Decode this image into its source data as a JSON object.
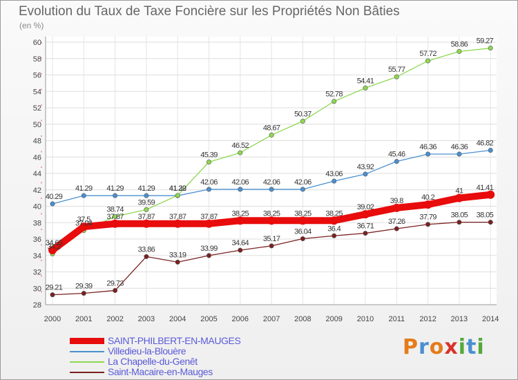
{
  "header": {
    "title": "Evolution du Taux de Taxe Foncière sur les Propriétés Non Bâties",
    "unit": "(en %)"
  },
  "brand": {
    "letters": [
      "P",
      "r",
      "o",
      "x",
      "i",
      "t",
      "i"
    ],
    "colors": [
      "#e57c1c",
      "#4a8fd0",
      "#e57c1c",
      "#d8332a",
      "#55a83a",
      "#4a8fd0",
      "#55a83a"
    ]
  },
  "chart_data": {
    "type": "line",
    "title": "Evolution du Taux de Taxe Foncière sur les Propriétés Non Bâties",
    "ylabel": "(en %)",
    "xlabel": "",
    "x": [
      "2000",
      "2001",
      "2002",
      "2003",
      "2004",
      "2005",
      "2006",
      "2007",
      "2008",
      "2009",
      "2010",
      "2011",
      "2012",
      "2013",
      "2014"
    ],
    "ylim": [
      28,
      60
    ],
    "yticks": [
      "28",
      "30",
      "32",
      "34",
      "36",
      "38",
      "40",
      "42",
      "44",
      "46",
      "48",
      "50",
      "52",
      "54",
      "56",
      "58",
      "60"
    ],
    "legend_position": "bottom-left",
    "series": [
      {
        "name": "SAINT-PHILBERT-EN-MAUGES",
        "color": "#e80c0c",
        "values": [
          34.65,
          37.5,
          37.87,
          37.87,
          37.87,
          37.87,
          38.25,
          38.25,
          38.25,
          38.25,
          39.02,
          39.8,
          40.2,
          41,
          41.41
        ],
        "labels": [
          "34.65",
          "37.5",
          "37.87",
          "37.87",
          "37.87",
          "37.87",
          "38.25",
          "38.25",
          "38.25",
          "38.25",
          "39.02",
          "39.8",
          "40.2",
          "41",
          "41.41"
        ]
      },
      {
        "name": "Villedieu-la-Blouère",
        "color": "#4a90d0",
        "values": [
          40.29,
          41.29,
          41.29,
          41.29,
          41.29,
          42.06,
          42.06,
          42.06,
          42.06,
          43.06,
          43.92,
          45.46,
          46.36,
          46.36,
          46.82
        ],
        "labels": [
          "40.29",
          "41.29",
          "41.29",
          "41.29",
          "41.29",
          "42.06",
          "42.06",
          "42.06",
          "42.06",
          "43.06",
          "43.92",
          "45.46",
          "46.36",
          "46.36",
          "46.82"
        ]
      },
      {
        "name": "La Chapelle-du-Genêt",
        "color": "#8ed850",
        "values": [
          34.2,
          37.04,
          38.74,
          39.59,
          41.32,
          45.39,
          46.52,
          48.67,
          50.37,
          52.78,
          54.41,
          55.77,
          57.72,
          58.86,
          59.27
        ],
        "labels": [
          "34.2",
          "37.04",
          "38.74",
          "39.59",
          "41.32",
          "45.39",
          "46.52",
          "48.67",
          "50.37",
          "52.78",
          "54.41",
          "55.77",
          "57.72",
          "58.86",
          "59.27"
        ]
      },
      {
        "name": "Saint-Macaire-en-Mauges",
        "color": "#7a2020",
        "values": [
          29.21,
          29.39,
          29.73,
          33.86,
          33.19,
          33.99,
          34.64,
          35.17,
          36.04,
          36.4,
          36.71,
          37.26,
          37.79,
          38.05,
          38.05
        ],
        "labels": [
          "29.21",
          "29.39",
          "29.73",
          "33.86",
          "33.19",
          "33.99",
          "34.64",
          "35.17",
          "36.04",
          "36.4",
          "36.71",
          "37.26",
          "37.79",
          "38.05",
          "38.05"
        ]
      }
    ]
  }
}
